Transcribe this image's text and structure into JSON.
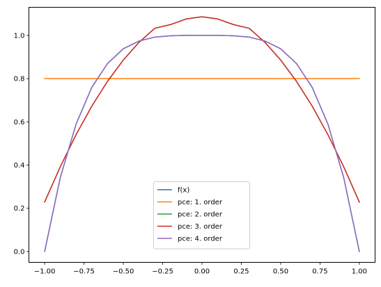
{
  "chart_data": {
    "type": "line",
    "title": "",
    "xlabel": "",
    "ylabel": "",
    "xlim": [
      -1.1,
      1.1
    ],
    "ylim": [
      -0.05,
      1.13
    ],
    "xticks": [
      -1.0,
      -0.75,
      -0.5,
      -0.25,
      0.0,
      0.25,
      0.5,
      0.75,
      1.0
    ],
    "xtick_labels": [
      "−1.00",
      "−0.75",
      "−0.50",
      "−0.25",
      "0.00",
      "0.25",
      "0.50",
      "0.75",
      "1.00"
    ],
    "yticks": [
      0.0,
      0.2,
      0.4,
      0.6,
      0.8,
      1.0
    ],
    "ytick_labels": [
      "0.0",
      "0.2",
      "0.4",
      "0.6",
      "0.8",
      "1.0"
    ],
    "grid": false,
    "legend_position": "bottom-center",
    "x": [
      -1.0,
      -0.9,
      -0.8,
      -0.7,
      -0.6,
      -0.5,
      -0.4,
      -0.3,
      -0.2,
      -0.1,
      0.0,
      0.1,
      0.2,
      0.3,
      0.4,
      0.5,
      0.6,
      0.7,
      0.8,
      0.9,
      1.0
    ],
    "series": [
      {
        "name": "f(x)",
        "color": "#1f77b4",
        "values": [
          0.0,
          0.344,
          0.59,
          0.76,
          0.87,
          0.938,
          0.974,
          0.992,
          0.998,
          1.0,
          1.0,
          1.0,
          0.998,
          0.992,
          0.974,
          0.938,
          0.87,
          0.76,
          0.59,
          0.344,
          0.0
        ]
      },
      {
        "name": "pce: 1. order",
        "color": "#ff7f0e",
        "values": [
          0.8,
          0.8,
          0.8,
          0.8,
          0.8,
          0.8,
          0.8,
          0.8,
          0.8,
          0.8,
          0.8,
          0.8,
          0.8,
          0.8,
          0.8,
          0.8,
          0.8,
          0.8,
          0.8,
          0.8,
          0.8
        ]
      },
      {
        "name": "pce: 2. order",
        "color": "#2ca02c",
        "values": [
          0.229,
          0.393,
          0.541,
          0.673,
          0.788,
          0.886,
          0.968,
          1.033,
          1.05,
          1.076,
          1.086,
          1.076,
          1.05,
          1.033,
          0.968,
          0.886,
          0.788,
          0.673,
          0.541,
          0.393,
          0.229
        ]
      },
      {
        "name": "pce: 3. order",
        "color": "#d62728",
        "values": [
          0.229,
          0.393,
          0.541,
          0.673,
          0.788,
          0.886,
          0.968,
          1.033,
          1.05,
          1.076,
          1.086,
          1.076,
          1.05,
          1.033,
          0.968,
          0.886,
          0.788,
          0.673,
          0.541,
          0.393,
          0.229
        ]
      },
      {
        "name": "pce: 4. order",
        "color": "#9467bd",
        "values": [
          0.0,
          0.344,
          0.59,
          0.76,
          0.87,
          0.938,
          0.974,
          0.992,
          0.998,
          1.0,
          1.0,
          1.0,
          0.998,
          0.992,
          0.974,
          0.938,
          0.87,
          0.76,
          0.59,
          0.344,
          0.0
        ]
      }
    ]
  }
}
